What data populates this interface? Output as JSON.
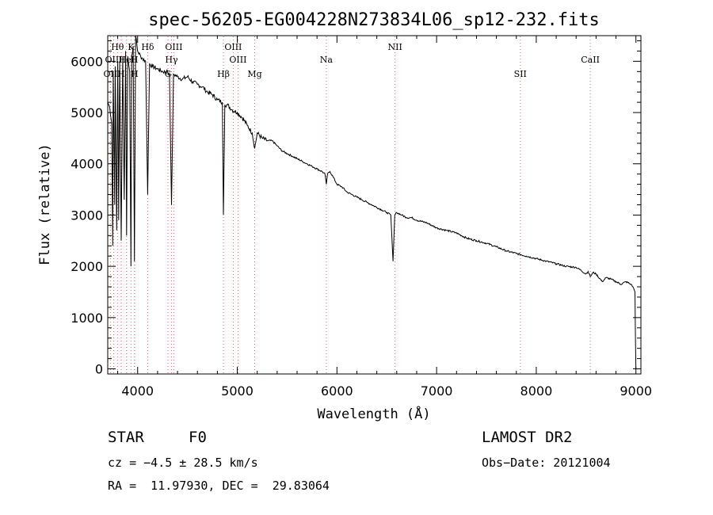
{
  "chart_data": {
    "type": "line",
    "title": "spec-56205-EG004228N273834L06_sp12-232.fits",
    "xlabel": "Wavelength (Å)",
    "ylabel": "Flux (relative)",
    "xlim": [
      3700,
      9050
    ],
    "ylim": [
      -100,
      6500
    ],
    "xticks": [
      4000,
      5000,
      6000,
      7000,
      8000,
      9000
    ],
    "yticks": [
      0,
      1000,
      2000,
      3000,
      4000,
      5000,
      6000
    ],
    "grid": false,
    "line_color": "#000000",
    "marker_color": "#e06666",
    "series": [
      {
        "x": [
          3700,
          3720,
          3740,
          3750,
          3755,
          3770,
          3775,
          3790,
          3800,
          3810,
          3820,
          3835,
          3850,
          3865,
          3880,
          3889,
          3900,
          3920,
          3933,
          3940,
          3955,
          3968,
          3980,
          4000,
          4030,
          4050,
          4080,
          4101,
          4120,
          4150,
          4200,
          4250,
          4300,
          4320,
          4340,
          4360,
          4400,
          4450,
          4500,
          4550,
          4600,
          4650,
          4700,
          4750,
          4800,
          4850,
          4861,
          4875,
          4900,
          4950,
          5000,
          5050,
          5100,
          5150,
          5175,
          5200,
          5250,
          5300,
          5350,
          5400,
          5450,
          5500,
          5550,
          5600,
          5650,
          5700,
          5750,
          5800,
          5850,
          5880,
          5893,
          5905,
          5930,
          5960,
          6000,
          6050,
          6100,
          6150,
          6200,
          6250,
          6300,
          6350,
          6400,
          6450,
          6500,
          6540,
          6563,
          6580,
          6600,
          6650,
          6700,
          6750,
          6800,
          6900,
          7000,
          7100,
          7200,
          7300,
          7400,
          7500,
          7600,
          7700,
          7800,
          7900,
          8000,
          8100,
          8200,
          8300,
          8400,
          8450,
          8498,
          8520,
          8542,
          8570,
          8600,
          8662,
          8700,
          8750,
          8800,
          8850,
          8900,
          8950,
          8970,
          8990,
          8995,
          9000
        ],
        "y": [
          5200,
          5100,
          4800,
          2400,
          5800,
          3200,
          5900,
          2700,
          6000,
          2900,
          6000,
          2500,
          6100,
          3300,
          6200,
          2600,
          6100,
          5800,
          2000,
          6100,
          6300,
          2100,
          6500,
          6200,
          6100,
          6050,
          6000,
          3400,
          5950,
          5900,
          5850,
          5800,
          5800,
          5700,
          3200,
          5750,
          5700,
          5650,
          5700,
          5600,
          5550,
          5500,
          5400,
          5350,
          5250,
          5200,
          3000,
          5150,
          5150,
          5050,
          5000,
          4900,
          4750,
          4600,
          4300,
          4600,
          4500,
          4450,
          4450,
          4350,
          4250,
          4200,
          4150,
          4100,
          4050,
          4000,
          3950,
          3900,
          3850,
          3800,
          3600,
          3800,
          3850,
          3750,
          3600,
          3550,
          3450,
          3400,
          3350,
          3300,
          3250,
          3200,
          3150,
          3100,
          3050,
          3000,
          2100,
          3000,
          3050,
          3000,
          2950,
          2950,
          2900,
          2850,
          2750,
          2700,
          2650,
          2550,
          2500,
          2450,
          2380,
          2300,
          2250,
          2200,
          2150,
          2100,
          2050,
          2000,
          1980,
          1920,
          1850,
          1900,
          1800,
          1880,
          1850,
          1700,
          1780,
          1750,
          1700,
          1650,
          1700,
          1650,
          1600,
          1500,
          600,
          0
        ]
      }
    ],
    "lines": [
      {
        "label": "OII",
        "x": 3727,
        "row": 2
      },
      {
        "label": "Hθ",
        "x": 3798,
        "row": 0
      },
      {
        "label": "OIII",
        "x": 3760,
        "row": 1
      },
      {
        "label": "H",
        "x": 3835,
        "row": 2
      },
      {
        "label": "HeI",
        "x": 3889,
        "row": 1
      },
      {
        "label": "K",
        "x": 3933,
        "row": 0
      },
      {
        "label": "H",
        "x": 3968,
        "row": 1
      },
      {
        "label": "H",
        "x": 3970,
        "row": 2
      },
      {
        "label": "Hδ",
        "x": 4101,
        "row": 0
      },
      {
        "label": "OIII",
        "x": 4363,
        "row": 0
      },
      {
        "label": "Hγ",
        "x": 4340,
        "row": 1
      },
      {
        "label": "G",
        "x": 4304,
        "row": 2
      },
      {
        "label": "OIII",
        "x": 4959,
        "row": 0
      },
      {
        "label": "OIII",
        "x": 5007,
        "row": 1
      },
      {
        "label": "Hβ",
        "x": 4861,
        "row": 2
      },
      {
        "label": "Mg",
        "x": 5175,
        "row": 2
      },
      {
        "label": "Na",
        "x": 5893,
        "row": 1
      },
      {
        "label": "NII",
        "x": 6583,
        "row": 0
      },
      {
        "label": "SII",
        "x": 7840,
        "row": 2
      },
      {
        "label": "CaII",
        "x": 8542,
        "row": 1
      }
    ]
  },
  "info": {
    "class": "STAR",
    "subclass": "F0",
    "survey": "LAMOST DR2",
    "cz": "cz = −4.5 ± 28.5 km/s",
    "obs_date": "Obs−Date: 20121004",
    "coords": "RA =  11.97930, DEC =  29.83064"
  }
}
